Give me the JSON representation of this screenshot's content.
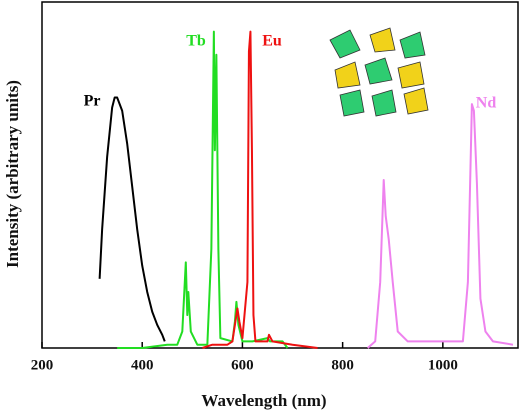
{
  "chart_data": {
    "type": "line",
    "x_label": "Wavelength (nm)",
    "y_label": "Intensity (arbitrary units)",
    "xlim": [
      200,
      1150
    ],
    "xticks": [
      200,
      400,
      600,
      800,
      1000
    ],
    "ylim": [
      0,
      1.05
    ],
    "series": [
      {
        "name": "Pr",
        "color": "#000000",
        "x": [
          315,
          320,
          330,
          340,
          345,
          350,
          355,
          360,
          370,
          380,
          390,
          400,
          410,
          420,
          430,
          440,
          445
        ],
        "values": [
          0.21,
          0.36,
          0.58,
          0.73,
          0.76,
          0.76,
          0.74,
          0.72,
          0.62,
          0.49,
          0.36,
          0.25,
          0.17,
          0.11,
          0.07,
          0.04,
          0.02
        ]
      },
      {
        "name": "Tb",
        "color": "#22dd22",
        "x": [
          350,
          400,
          450,
          470,
          480,
          487,
          490,
          492,
          497,
          510,
          530,
          538,
          543,
          545,
          548,
          552,
          556,
          580,
          585,
          588,
          592,
          600,
          620,
          650,
          655,
          680,
          690
        ],
        "values": [
          0,
          0,
          0.01,
          0.01,
          0.05,
          0.26,
          0.1,
          0.17,
          0.05,
          0.01,
          0.01,
          0.3,
          0.96,
          0.6,
          0.89,
          0.3,
          0.03,
          0.02,
          0.08,
          0.14,
          0.07,
          0.02,
          0.02,
          0.03,
          0.02,
          0.02,
          0
        ]
      },
      {
        "name": "Eu",
        "color": "#ee1111",
        "x": [
          520,
          540,
          570,
          580,
          590,
          594,
          600,
          610,
          613,
          616,
          619,
          622,
          626,
          650,
          653,
          660,
          700,
          750
        ],
        "values": [
          0,
          0.01,
          0.01,
          0.02,
          0.12,
          0.08,
          0.03,
          0.2,
          0.9,
          0.96,
          0.6,
          0.1,
          0.02,
          0.02,
          0.04,
          0.02,
          0.01,
          0
        ]
      },
      {
        "name": "Nd",
        "color": "#ee82ee",
        "x": [
          850,
          865,
          875,
          882,
          886,
          892,
          900,
          910,
          930,
          1040,
          1050,
          1058,
          1062,
          1068,
          1075,
          1085,
          1100,
          1140
        ],
        "values": [
          0,
          0.02,
          0.2,
          0.51,
          0.4,
          0.33,
          0.2,
          0.05,
          0.02,
          0.02,
          0.2,
          0.74,
          0.72,
          0.5,
          0.15,
          0.05,
          0.02,
          0.01
        ]
      }
    ]
  }
}
